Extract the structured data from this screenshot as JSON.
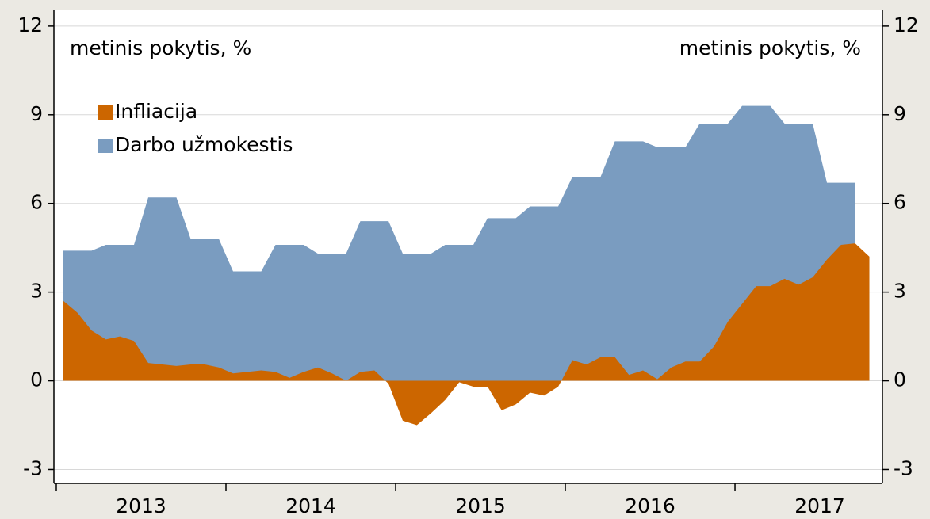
{
  "chart_data": {
    "type": "area",
    "annotations": [
      "metinis pokytis, %",
      "metinis pokytis, %"
    ],
    "x": [
      2013.042,
      2013.125,
      2013.208,
      2013.292,
      2013.375,
      2013.458,
      2013.542,
      2013.625,
      2013.708,
      2013.792,
      2013.875,
      2013.958,
      2014.042,
      2014.125,
      2014.208,
      2014.292,
      2014.375,
      2014.458,
      2014.542,
      2014.625,
      2014.708,
      2014.792,
      2014.875,
      2014.958,
      2015.042,
      2015.125,
      2015.208,
      2015.292,
      2015.375,
      2015.458,
      2015.542,
      2015.625,
      2015.708,
      2015.792,
      2015.875,
      2015.958,
      2016.042,
      2016.125,
      2016.208,
      2016.292,
      2016.375,
      2016.458,
      2016.542,
      2016.625,
      2016.708,
      2016.792,
      2016.875,
      2016.958,
      2017.042,
      2017.125,
      2017.208,
      2017.292,
      2017.375,
      2017.458,
      2017.542,
      2017.625,
      2017.708,
      2017.792
    ],
    "series": [
      {
        "name": "Darbo užmokestis",
        "color": "#7a9cc0",
        "values": [
          4.4,
          4.4,
          4.4,
          4.6,
          4.6,
          4.6,
          6.2,
          6.2,
          6.2,
          4.8,
          4.8,
          4.8,
          3.7,
          3.7,
          3.7,
          4.6,
          4.6,
          4.6,
          4.3,
          4.3,
          4.3,
          5.4,
          5.4,
          5.4,
          4.3,
          4.3,
          4.3,
          4.6,
          4.6,
          4.6,
          5.5,
          5.5,
          5.5,
          5.9,
          5.9,
          5.9,
          6.9,
          6.9,
          6.9,
          8.1,
          8.1,
          8.1,
          7.9,
          7.9,
          7.9,
          8.7,
          8.7,
          8.7,
          9.3,
          9.3,
          9.3,
          8.7,
          8.7,
          8.7,
          6.7,
          6.7,
          6.7,
          null
        ]
      },
      {
        "name": "Infliacija",
        "color": "#cc6600",
        "values": [
          2.7,
          2.3,
          1.7,
          1.4,
          1.5,
          1.35,
          0.6,
          0.55,
          0.5,
          0.55,
          0.55,
          0.45,
          0.25,
          0.3,
          0.35,
          0.3,
          0.1,
          0.3,
          0.45,
          0.25,
          0.0,
          0.3,
          0.35,
          -0.1,
          -1.35,
          -1.5,
          -1.1,
          -0.65,
          -0.05,
          -0.2,
          -0.2,
          -1.0,
          -0.8,
          -0.4,
          -0.5,
          -0.2,
          0.7,
          0.55,
          0.8,
          0.8,
          0.2,
          0.35,
          0.05,
          0.45,
          0.65,
          0.65,
          1.15,
          2.0,
          2.6,
          3.2,
          3.2,
          3.45,
          3.25,
          3.5,
          4.1,
          4.6,
          4.65,
          4.2
        ]
      }
    ],
    "legend_order": [
      "Infliacija",
      "Darbo užmokestis"
    ],
    "xlim": [
      2012.986,
      2017.869
    ],
    "xticks": [
      2013,
      2014,
      2015,
      2016,
      2017
    ],
    "ylim": [
      -3.47,
      12.56
    ],
    "yticks": [
      -3,
      0,
      3,
      6,
      9,
      12
    ],
    "y2lim": [
      -3.47,
      12.56
    ],
    "y2ticks": [
      -3,
      0,
      3,
      6,
      9,
      12
    ],
    "grid": true
  }
}
